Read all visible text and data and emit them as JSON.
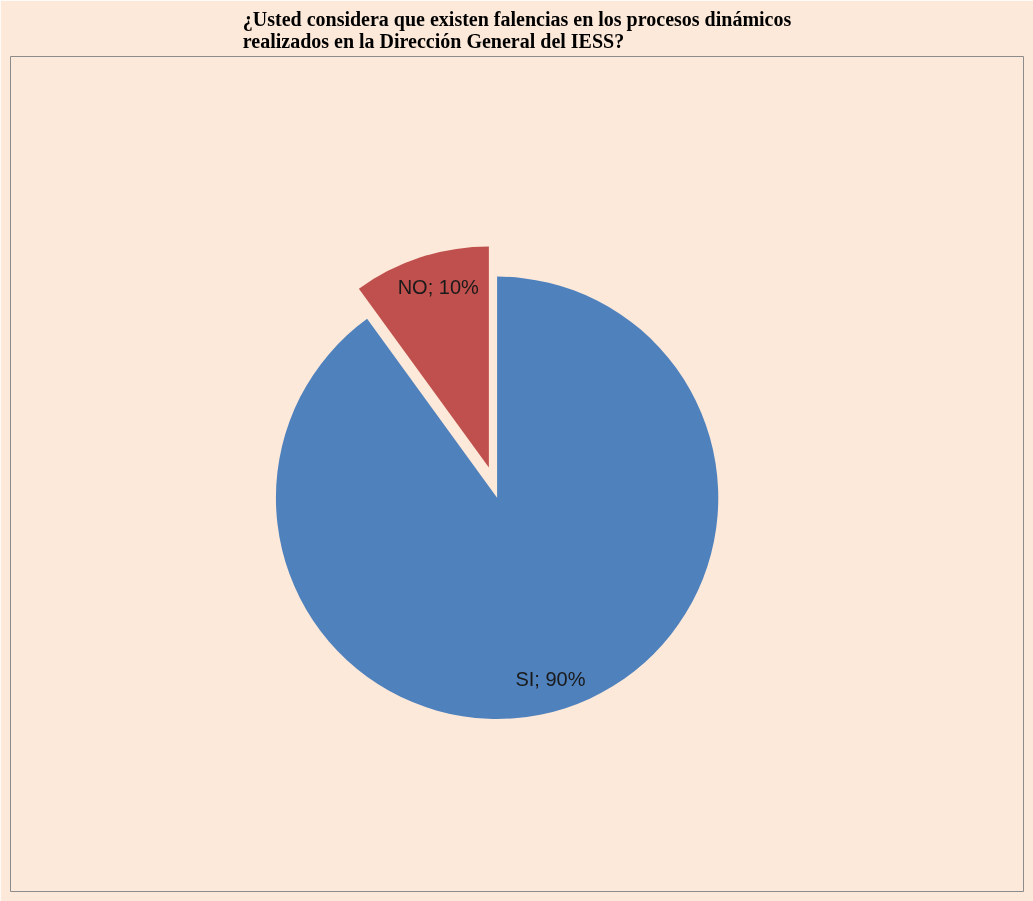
{
  "chart_data": {
    "type": "pie",
    "title": "¿Usted considera que existen falencias en los procesos dinámicos\nrealizados en la Dirección General del IESS?",
    "categories": [
      "SI",
      "NO"
    ],
    "values": [
      90,
      10
    ],
    "colors": [
      "#4f81bd",
      "#c0504d"
    ],
    "value_labels": [
      "; 90%",
      "; 10%"
    ]
  }
}
